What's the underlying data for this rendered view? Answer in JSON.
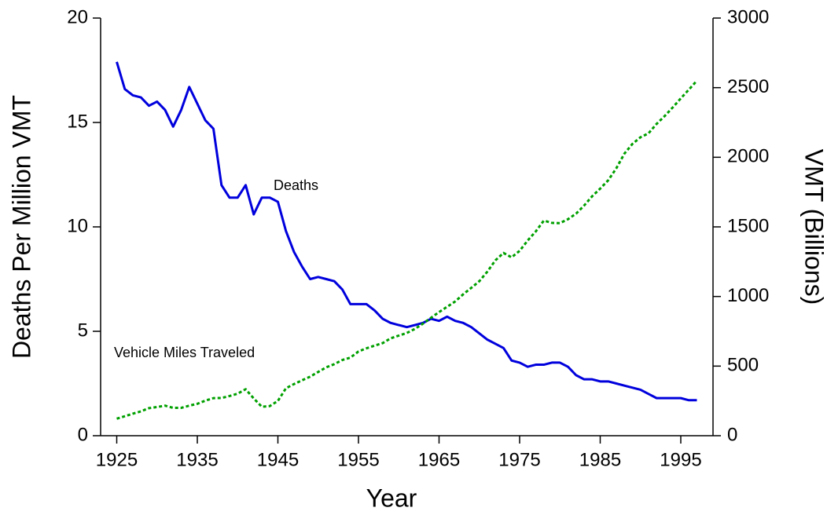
{
  "chart_data": {
    "type": "line",
    "x": [
      1925,
      1926,
      1927,
      1928,
      1929,
      1930,
      1931,
      1932,
      1933,
      1934,
      1935,
      1936,
      1937,
      1938,
      1939,
      1940,
      1941,
      1942,
      1943,
      1944,
      1945,
      1946,
      1947,
      1948,
      1949,
      1950,
      1951,
      1952,
      1953,
      1954,
      1955,
      1956,
      1957,
      1958,
      1959,
      1960,
      1961,
      1962,
      1963,
      1964,
      1965,
      1966,
      1967,
      1968,
      1969,
      1970,
      1971,
      1972,
      1973,
      1974,
      1975,
      1976,
      1977,
      1978,
      1979,
      1980,
      1981,
      1982,
      1983,
      1984,
      1985,
      1986,
      1987,
      1988,
      1989,
      1990,
      1991,
      1992,
      1993,
      1994,
      1995,
      1996,
      1997
    ],
    "series": [
      {
        "name": "Deaths",
        "color": "#0000dd",
        "dash": "solid",
        "values": [
          17.9,
          16.6,
          16.3,
          16.2,
          15.8,
          16.0,
          15.6,
          14.8,
          15.6,
          16.7,
          15.9,
          15.1,
          14.7,
          12.0,
          11.4,
          11.4,
          12.0,
          10.6,
          11.4,
          11.4,
          11.2,
          9.8,
          8.8,
          8.1,
          7.5,
          7.6,
          7.5,
          7.4,
          7.0,
          6.3,
          6.3,
          6.3,
          6.0,
          5.6,
          5.4,
          5.3,
          5.2,
          5.3,
          5.4,
          5.6,
          5.5,
          5.7,
          5.5,
          5.4,
          5.2,
          4.9,
          4.6,
          4.4,
          4.2,
          3.6,
          3.5,
          3.3,
          3.4,
          3.4,
          3.5,
          3.5,
          3.3,
          2.9,
          2.7,
          2.7,
          2.6,
          2.6,
          2.5,
          2.4,
          2.3,
          2.2,
          2.0,
          1.8,
          1.8,
          1.8,
          1.8,
          1.7,
          1.7
        ]
      },
      {
        "name": "Vehicle Miles Traveled",
        "color": "#00a000",
        "dash": "dotted",
        "axis": "y2",
        "values": [
          122,
          140,
          158,
          175,
          198,
          206,
          216,
          200,
          200,
          216,
          229,
          252,
          270,
          271,
          285,
          302,
          334,
          268,
          208,
          213,
          250,
          341,
          371,
          398,
          424,
          458,
          491,
          514,
          544,
          561,
          605,
          628,
          647,
          665,
          700,
          719,
          738,
          767,
          805,
          847,
          888,
          926,
          964,
          1016,
          1062,
          1110,
          1179,
          1260,
          1313,
          1281,
          1328,
          1402,
          1467,
          1545,
          1529,
          1527,
          1555,
          1595,
          1653,
          1720,
          1775,
          1835,
          1921,
          2026,
          2096,
          2144,
          2172,
          2240,
          2296,
          2358,
          2423,
          2486,
          2550
        ]
      }
    ],
    "xlabel": "Year",
    "ylabel": "Deaths Per Million VMT",
    "y2label": "VMT (Billions)",
    "xlim": [
      1923,
      1999
    ],
    "xticks": [
      1925,
      1935,
      1945,
      1955,
      1965,
      1975,
      1985,
      1995
    ],
    "ylim": [
      0,
      20
    ],
    "yticks": [
      0,
      5,
      10,
      15,
      20
    ],
    "y2lim": [
      0,
      3000
    ],
    "y2ticks": [
      0,
      500,
      1000,
      1500,
      2000,
      2500,
      3000
    ]
  }
}
